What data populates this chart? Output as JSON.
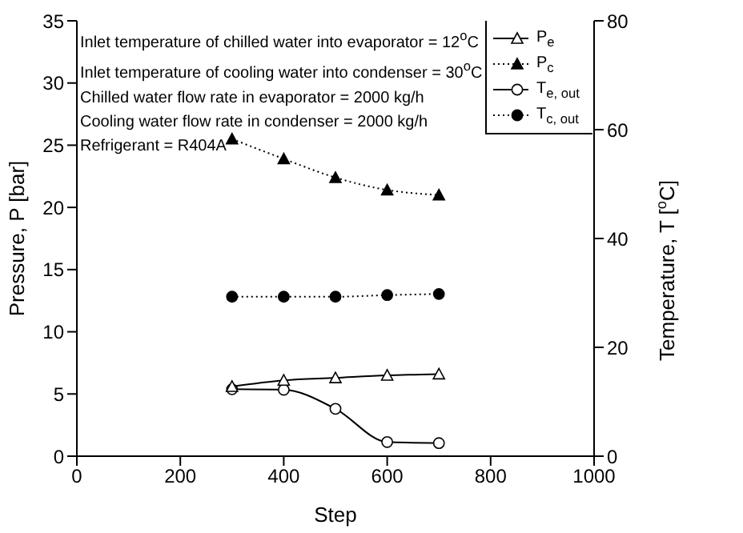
{
  "chart_data": {
    "type": "line",
    "xlabel": "Step",
    "ylabel": "Pressure, P [bar]",
    "y2label": "Temperature, T [$^{o}$C]",
    "annotations": [
      "Inlet temperature of chilled water into evaporator = 12$^{o}$C",
      "Inlet temperature of cooling water into condenser = 30$^{o}$C",
      "Chilled water flow rate in evaporator = 2000 kg/h",
      "Cooling water flow rate in condenser = 2000 kg/h",
      "Refrigerant = R404A"
    ],
    "x": [
      300,
      400,
      500,
      600,
      700
    ],
    "series": [
      {
        "name": "P$_{e}$",
        "color": "#000000",
        "marker": "triangle",
        "line_style": "solid",
        "values": [
          5.6,
          6.1,
          6.3,
          6.5,
          6.6
        ]
      },
      {
        "name": "P$_{c}$",
        "color": "#000000",
        "marker": "triangle",
        "line_style": "dotted",
        "values": [
          25.5,
          23.9,
          22.4,
          21.4,
          21.0
        ]
      },
      {
        "name": "T$_{e, out}$",
        "color": "#000000",
        "marker": "circle",
        "line_style": "solid",
        "axis": "y2",
        "values": [
          12.3,
          12.2,
          8.7,
          2.6,
          2.4
        ]
      },
      {
        "name": "T$_{c, out}$",
        "color": "#000000",
        "marker": "circle",
        "line_style": "dotted",
        "axis": "y2",
        "values": [
          29.3,
          29.3,
          29.3,
          29.6,
          29.8
        ]
      }
    ],
    "xlim": [
      0,
      1000
    ],
    "xticks": [
      0,
      200,
      400,
      600,
      800,
      1000
    ],
    "ylim": [
      0,
      35
    ],
    "yticks": [
      0,
      5,
      10,
      15,
      20,
      25,
      30,
      35
    ],
    "y2lim": [
      0,
      80
    ],
    "y2ticks": [
      0,
      20,
      40,
      60,
      80
    ],
    "legend": "top right",
    "grid": false
  }
}
